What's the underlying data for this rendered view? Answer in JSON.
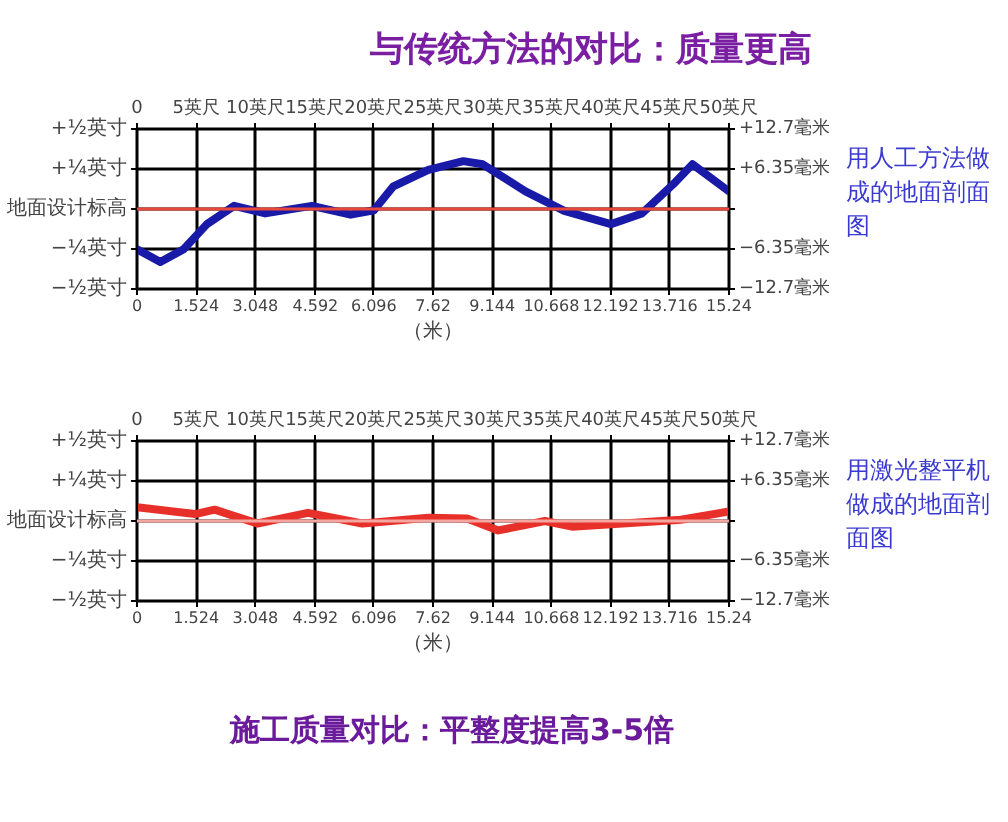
{
  "chart_data": [
    {
      "type": "line",
      "title": "与传统方法的对比：质量更高",
      "xlabel": "（米）",
      "annotations": [
        "用人工方法做成的地面剖面图",
        "+½英寸",
        "+¼英寸",
        "地面设计标高",
        "−¼英寸",
        "−½英寸"
      ],
      "series": [
        {
          "color": "#1a1aa8",
          "x": [
            0,
            0.6,
            1.2,
            1.8,
            2.5,
            3.3,
            4.5,
            5.5,
            6.1,
            6.6,
            7.5,
            8.4,
            8.9,
            10.0,
            11.0,
            12.2,
            13.0,
            13.8,
            14.3,
            15.24
          ],
          "values": [
            -6.4,
            -8.4,
            -6.4,
            -2.4,
            0.5,
            -0.7,
            0.5,
            -0.9,
            -0.2,
            3.6,
            6.2,
            7.6,
            7.1,
            2.8,
            -0.3,
            -2.4,
            -0.7,
            3.9,
            7.1,
            2.8
          ]
        }
      ],
      "xlim": [
        0,
        15.24
      ],
      "xticks": [
        0,
        1.524,
        3.048,
        4.592,
        6.096,
        7.62,
        9.144,
        10.668,
        12.192,
        13.716,
        15.24
      ],
      "x2lim": [
        0,
        50
      ],
      "x2ticks": [
        0,
        {
          "value": 5,
          "label": "5英尺"
        },
        {
          "value": 10,
          "label": "10英尺"
        },
        {
          "value": 15,
          "label": "15英尺"
        },
        {
          "value": 20,
          "label": "20英尺"
        },
        {
          "value": 25,
          "label": "25英尺"
        },
        {
          "value": 30,
          "label": "30英尺"
        },
        {
          "value": 35,
          "label": "35英尺"
        },
        {
          "value": 40,
          "label": "40英尺"
        },
        {
          "value": 45,
          "label": "45英尺"
        },
        {
          "value": 50,
          "label": "50英尺"
        }
      ],
      "ylim": [
        -12.7,
        12.7
      ],
      "yticks": [
        {
          "value": -12.7,
          "label": "−12.7毫米"
        },
        {
          "value": -6.35,
          "label": "−6.35毫米"
        },
        {
          "value": 0,
          "label": null
        },
        {
          "value": 6.35,
          "label": "+6.35毫米"
        },
        {
          "value": 12.7,
          "label": "+12.7毫米"
        }
      ],
      "ref_lines": [
        {
          "axis": "y",
          "value": 0,
          "color": "#e8483a"
        }
      ],
      "grid": true,
      "line_style": "solid"
    },
    {
      "type": "line",
      "xlabel": "（米）",
      "annotations": [
        "用激光整平机做成的地面剖面图",
        "+½英寸",
        "+¼英寸",
        "地面设计标高",
        "−¼英寸",
        "−½英寸",
        "施工质量对比：平整度提高3-5倍"
      ],
      "series": [
        {
          "color": "#e8302a",
          "x": [
            0,
            1.5,
            2.0,
            3.1,
            4.4,
            5.8,
            7.5,
            8.5,
            9.3,
            10.5,
            11.2,
            12.5,
            14.0,
            15.24
          ],
          "values": [
            2.2,
            1.1,
            1.8,
            -0.4,
            1.3,
            -0.4,
            0.5,
            0.4,
            -1.5,
            0,
            -0.9,
            -0.4,
            0.2,
            1.5
          ]
        }
      ],
      "xlim": [
        0,
        15.24
      ],
      "xticks": [
        0,
        1.524,
        3.048,
        4.592,
        6.096,
        7.62,
        9.144,
        10.668,
        12.192,
        13.716,
        15.24
      ],
      "x2lim": [
        0,
        50
      ],
      "x2ticks": [
        0,
        {
          "value": 5,
          "label": "5英尺"
        },
        {
          "value": 10,
          "label": "10英尺"
        },
        {
          "value": 15,
          "label": "15英尺"
        },
        {
          "value": 20,
          "label": "20英尺"
        },
        {
          "value": 25,
          "label": "25英尺"
        },
        {
          "value": 30,
          "label": "30英尺"
        },
        {
          "value": 35,
          "label": "35英尺"
        },
        {
          "value": 40,
          "label": "40英尺"
        },
        {
          "value": 45,
          "label": "45英尺"
        },
        {
          "value": 50,
          "label": "50英尺"
        }
      ],
      "ylim": [
        -12.7,
        12.7
      ],
      "yticks": [
        {
          "value": -12.7,
          "label": "−12.7毫米"
        },
        {
          "value": -6.35,
          "label": "−6.35毫米"
        },
        {
          "value": 0,
          "label": null
        },
        {
          "value": 6.35,
          "label": "+6.35毫米"
        },
        {
          "value": 12.7,
          "label": "+12.7毫米"
        }
      ],
      "ref_lines": [
        {
          "axis": "y",
          "value": 0,
          "color": "#f4a6a0"
        }
      ],
      "grid": true,
      "line_style": "solid"
    }
  ]
}
